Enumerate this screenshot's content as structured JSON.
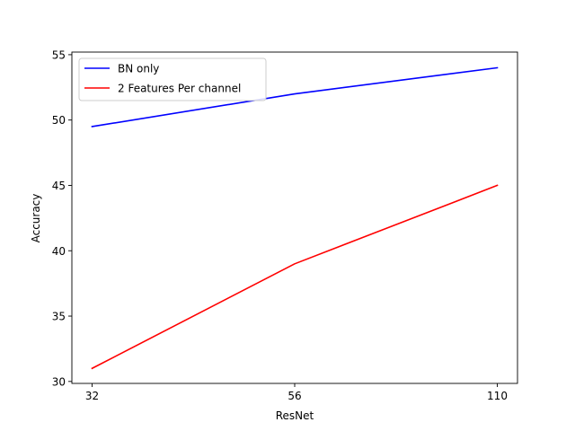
{
  "chart_data": {
    "type": "line",
    "categories": [
      "32",
      "56",
      "110"
    ],
    "series": [
      {
        "name": "BN only",
        "values": [
          49.5,
          52.0,
          54.0
        ],
        "color": "#0000ff"
      },
      {
        "name": "2 Features Per channel",
        "values": [
          31.0,
          39.0,
          45.0
        ],
        "color": "#ff0000"
      }
    ],
    "xlabel": "ResNet",
    "ylabel": "Accuracy",
    "ylim": [
      29.85,
      55.2
    ],
    "yticks": [
      30,
      35,
      40,
      45,
      50,
      55
    ],
    "grid": false,
    "legend_position": "upper-left"
  }
}
